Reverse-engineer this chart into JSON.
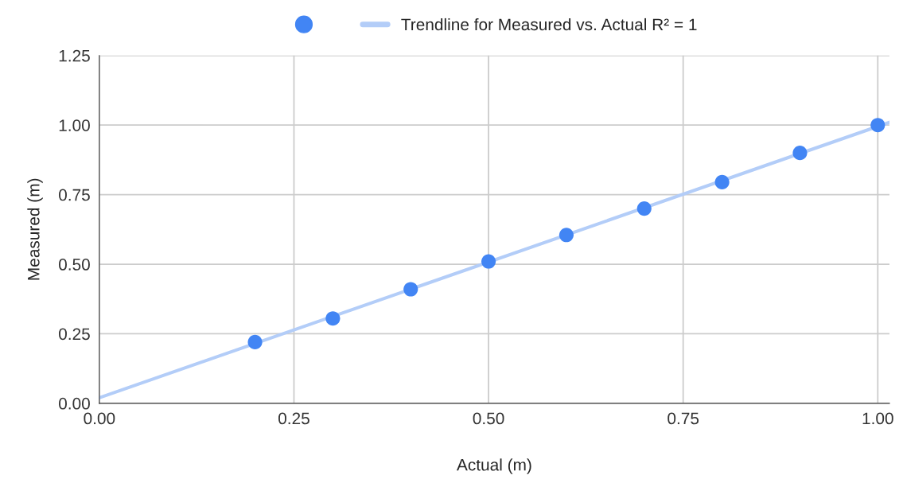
{
  "chart_data": {
    "type": "scatter",
    "xlabel": "Actual (m)",
    "ylabel": "Measured (m)",
    "series": [
      {
        "marker": "circle",
        "color": "#4285f4",
        "x": [
          0.2,
          0.3,
          0.4,
          0.5,
          0.6,
          0.7,
          0.8,
          0.9,
          1.0
        ],
        "values": [
          0.22,
          0.305,
          0.41,
          0.51,
          0.605,
          0.7,
          0.795,
          0.9,
          1.0
        ]
      },
      {
        "type": "line",
        "name": "Trendline for Measured vs. Actual R² = 1",
        "color": "#b3cdf8",
        "x": [
          0,
          1.015
        ],
        "values": [
          0.02,
          1.01
        ]
      }
    ],
    "xlim": [
      0,
      1.015
    ],
    "xticks": [
      {
        "value": 0,
        "label": "0.00"
      },
      {
        "value": 0.25,
        "label": "0.25"
      },
      {
        "value": 0.5,
        "label": "0.50"
      },
      {
        "value": 0.75,
        "label": "0.75"
      },
      {
        "value": 1.0,
        "label": "1.00"
      }
    ],
    "ylim": [
      0,
      1.25
    ],
    "yticks": [
      {
        "value": 0,
        "label": "0.00"
      },
      {
        "value": 0.25,
        "label": "0.25"
      },
      {
        "value": 0.5,
        "label": "0.50"
      },
      {
        "value": 0.75,
        "label": "0.75"
      },
      {
        "value": 1.0,
        "label": "1.00"
      },
      {
        "value": 1.25,
        "label": "1.25"
      }
    ],
    "grid": true,
    "legend": "top"
  }
}
